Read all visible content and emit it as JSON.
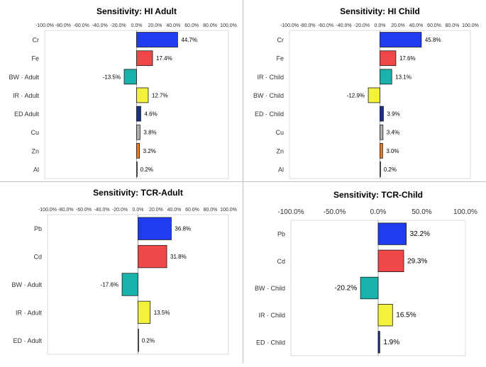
{
  "colors": {
    "blue": "#1f3cf0",
    "red": "#f04848",
    "teal": "#1ab3ab",
    "yellow": "#f2f23c",
    "navy": "#1a2f8f",
    "gray": "#b0b0b0",
    "orange": "#ec7c24",
    "white": "#ffffff"
  },
  "chart_data": [
    {
      "type": "bar",
      "orientation": "horizontal",
      "title": "Sensitivity: HI Adult",
      "xlim": [
        -100,
        100
      ],
      "ticks": [
        "-100.0%",
        "-80.0%",
        "-60.0%",
        "-40.0%",
        "-20.0%",
        "0.0%",
        "20.0%",
        "40.0%",
        "60.0%",
        "80.0%",
        "100.0%"
      ],
      "categories": [
        "Cr",
        "Fe",
        "BW · Adult",
        "IR · Adult",
        "ED Adult",
        "Cu",
        "Zn",
        "Al"
      ],
      "values": [
        44.7,
        17.4,
        -13.5,
        12.7,
        4.6,
        3.8,
        3.2,
        0.2
      ],
      "labels": [
        "44.7%",
        "17.4%",
        "-13.5%",
        "12.7%",
        "4.6%",
        "3.8%",
        "3.2%",
        "0.2%"
      ],
      "colors": [
        "blue",
        "red",
        "teal",
        "yellow",
        "navy",
        "gray",
        "orange",
        "white"
      ]
    },
    {
      "type": "bar",
      "orientation": "horizontal",
      "title": "Sensitivity: HI Child",
      "xlim": [
        -100,
        100
      ],
      "ticks": [
        "-100.0%",
        "-80.0%",
        "-60.0%",
        "-40.0%",
        "-20.0%",
        "0.0%",
        "20.0%",
        "40.0%",
        "60.0%",
        "80.0%",
        "100.0%"
      ],
      "categories": [
        "Cr",
        "Fe",
        "IR · Child",
        "BW · Child",
        "ED · Child",
        "Cu",
        "Zn",
        "Al"
      ],
      "values": [
        45.8,
        17.6,
        13.1,
        -12.9,
        3.9,
        3.4,
        3.0,
        0.2
      ],
      "labels": [
        "45.8%",
        "17.6%",
        "13.1%",
        "-12.9%",
        "3.9%",
        "3.4%",
        "3.0%",
        "0.2%"
      ],
      "colors": [
        "blue",
        "red",
        "teal",
        "yellow",
        "navy",
        "gray",
        "orange",
        "white"
      ]
    },
    {
      "type": "bar",
      "orientation": "horizontal",
      "title": "Sensitivity: TCR-Adult",
      "xlim": [
        -100,
        100
      ],
      "ticks": [
        "-100.0%",
        "-80.0%",
        "-60.0%",
        "-40.0%",
        "-20.0%",
        "0.0%",
        "20.0%",
        "40.0%",
        "60.0%",
        "80.0%",
        "100.0%"
      ],
      "categories": [
        "Pb",
        "Cd",
        "BW · Adult",
        "IR · Adult",
        "ED · Adult"
      ],
      "values": [
        36.8,
        31.8,
        -17.6,
        13.5,
        0.2
      ],
      "labels": [
        "36.8%",
        "31.8%",
        "-17.6%",
        "13.5%",
        "0.2%"
      ],
      "colors": [
        "blue",
        "red",
        "teal",
        "yellow",
        "white"
      ]
    },
    {
      "type": "bar",
      "orientation": "horizontal",
      "title": "Sensitivity: TCR-Child",
      "xlim": [
        -100,
        100
      ],
      "ticks": [
        "-100.0%",
        "-50.0%",
        "0.0%",
        "50.0%",
        "100.0%"
      ],
      "categories": [
        "Pb",
        "Cd",
        "BW · Child",
        "IR · Child",
        "ED · Child"
      ],
      "values": [
        32.2,
        29.3,
        -20.2,
        16.5,
        1.9
      ],
      "labels": [
        "32.2%",
        "29.3%",
        "-20.2%",
        "16.5%",
        "1.9%"
      ],
      "colors": [
        "blue",
        "red",
        "teal",
        "yellow",
        "navy"
      ]
    }
  ]
}
